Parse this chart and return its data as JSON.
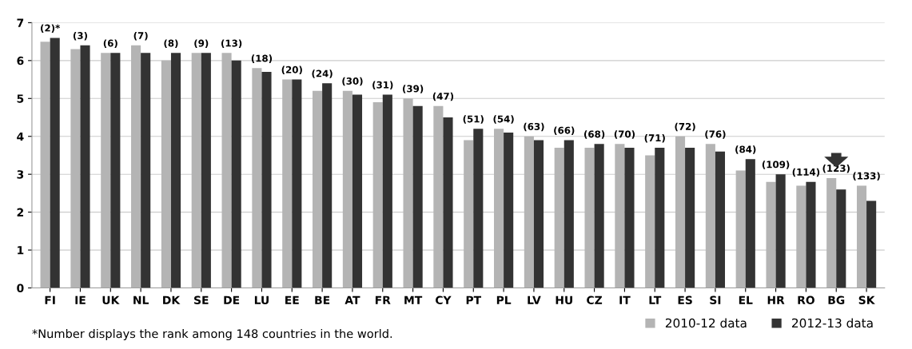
{
  "chart_data": {
    "type": "bar",
    "categories": [
      "FI",
      "IE",
      "UK",
      "NL",
      "DK",
      "SE",
      "DE",
      "LU",
      "EE",
      "BE",
      "AT",
      "FR",
      "MT",
      "CY",
      "PT",
      "PL",
      "LV",
      "HU",
      "CZ",
      "IT",
      "LT",
      "ES",
      "SI",
      "EL",
      "HR",
      "RO",
      "BG",
      "SK"
    ],
    "series": [
      {
        "name": "2010-12 data",
        "color": "#b4b4b4",
        "values": [
          6.5,
          6.3,
          6.2,
          6.4,
          6.0,
          6.2,
          6.2,
          5.8,
          5.5,
          5.2,
          5.2,
          4.9,
          5.0,
          4.8,
          3.9,
          4.2,
          4.0,
          3.7,
          3.7,
          3.8,
          3.5,
          4.0,
          3.8,
          3.1,
          2.8,
          2.7,
          2.9,
          2.7
        ]
      },
      {
        "name": "2012-13 data",
        "color": "#333333",
        "values": [
          6.6,
          6.4,
          6.2,
          6.2,
          6.2,
          6.2,
          6.0,
          5.7,
          5.5,
          5.4,
          5.1,
          5.1,
          4.8,
          4.5,
          4.2,
          4.1,
          3.9,
          3.9,
          3.8,
          3.7,
          3.7,
          3.7,
          3.6,
          3.4,
          3.0,
          2.8,
          2.6,
          2.3
        ]
      }
    ],
    "ylim": [
      0,
      7
    ],
    "yticks": [
      0,
      1,
      2,
      3,
      4,
      5,
      6,
      7
    ],
    "grid": "y",
    "legend": "bottom right",
    "annotations": [
      {
        "text": "(2)*",
        "x": "FI",
        "y": 6.6
      },
      {
        "text": "(3)",
        "x": "IE",
        "y": 6.4
      },
      {
        "text": "(6)",
        "x": "UK",
        "y": 6.2
      },
      {
        "text": "(7)",
        "x": "NL",
        "y": 6.4
      },
      {
        "text": "(8)",
        "x": "DK",
        "y": 6.2
      },
      {
        "text": "(9)",
        "x": "SE",
        "y": 6.2
      },
      {
        "text": "(13)",
        "x": "DE",
        "y": 6.2
      },
      {
        "text": "(18)",
        "x": "LU",
        "y": 5.8
      },
      {
        "text": "(20)",
        "x": "EE",
        "y": 5.5
      },
      {
        "text": "(24)",
        "x": "BE",
        "y": 5.4
      },
      {
        "text": "(30)",
        "x": "AT",
        "y": 5.2
      },
      {
        "text": "(31)",
        "x": "FR",
        "y": 5.1
      },
      {
        "text": "(39)",
        "x": "MT",
        "y": 5.0
      },
      {
        "text": "(47)",
        "x": "CY",
        "y": 4.8
      },
      {
        "text": "(51)",
        "x": "PT",
        "y": 4.2
      },
      {
        "text": "(54)",
        "x": "PL",
        "y": 4.2
      },
      {
        "text": "(63)",
        "x": "LV",
        "y": 4.0
      },
      {
        "text": "(66)",
        "x": "HU",
        "y": 3.9
      },
      {
        "text": "(68)",
        "x": "CZ",
        "y": 3.8
      },
      {
        "text": "(70)",
        "x": "IT",
        "y": 3.8
      },
      {
        "text": "(71)",
        "x": "LT",
        "y": 3.7
      },
      {
        "text": "(72)",
        "x": "ES",
        "y": 4.0
      },
      {
        "text": "(76)",
        "x": "SI",
        "y": 3.8
      },
      {
        "text": "(84)",
        "x": "EL",
        "y": 3.4
      },
      {
        "text": "(109)",
        "x": "HR",
        "y": 3.0
      },
      {
        "text": "(114)",
        "x": "RO",
        "y": 2.8
      },
      {
        "text": "(123)",
        "x": "BG",
        "y": 2.9
      },
      {
        "text": "(133)",
        "x": "SK",
        "y": 2.7
      },
      "*Number displays the rank among 148 countries in the world."
    ]
  }
}
